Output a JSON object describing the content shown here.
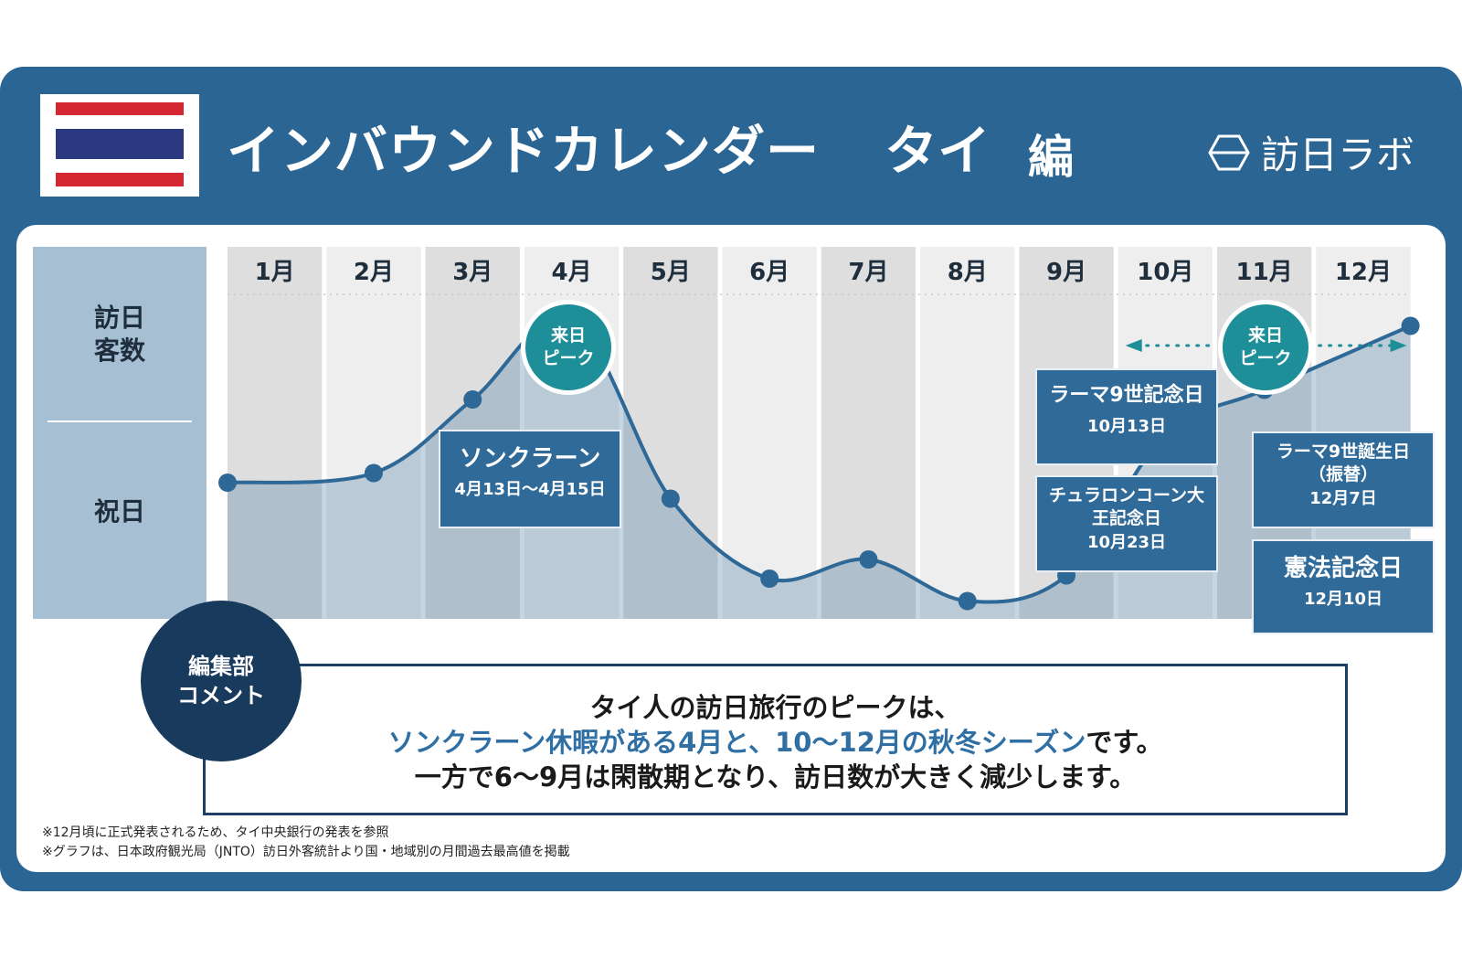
{
  "header": {
    "title": "インバウンドカレンダー",
    "country": "タイ",
    "suffix": "編",
    "brand": "訪日ラボ"
  },
  "side_labels": {
    "visitors": [
      "訪日",
      "客数"
    ],
    "holidays": "祝日"
  },
  "chart_data": {
    "type": "line",
    "categories": [
      "1月",
      "2月",
      "3月",
      "4月",
      "5月",
      "6月",
      "7月",
      "8月",
      "9月",
      "10月",
      "11月",
      "12月"
    ],
    "series": [
      {
        "values": [
          0.4,
          0.43,
          0.66,
          0.91,
          0.35,
          0.1,
          0.16,
          0.03,
          0.11,
          0.55,
          0.69,
          0.89
        ]
      }
    ],
    "ylim": [
      0,
      1
    ],
    "peaks": [
      {
        "month": "4月",
        "label": [
          "来日",
          "ピーク"
        ]
      },
      {
        "month": "11月",
        "label": [
          "来日",
          "ピーク"
        ]
      }
    ],
    "peak_span": [
      "10月",
      "12月"
    ],
    "holidays": [
      {
        "name": "ソンクラーン",
        "date": "4月13日〜4月15日"
      },
      {
        "name": "ラーマ9世記念日",
        "date": "10月13日"
      },
      {
        "name": "チュラロンコーン大王記念日",
        "date": "10月23日"
      },
      {
        "name": "ラーマ9世誕生日（振替）",
        "date": "12月7日"
      },
      {
        "name": "憲法記念日",
        "date": "12月10日"
      }
    ]
  },
  "comment": {
    "badge": [
      "編集部",
      "コメント"
    ],
    "line1": "タイ人の訪日旅行のピークは、",
    "line2_highlight": "ソンクラーン休暇がある4月と、10〜12月の秋冬シーズン",
    "line2_tail": "です。",
    "line3": "一方で6〜9月は閑散期となり、訪日数が大きく減少します。"
  },
  "notes": [
    "※12月頃に正式発表されるため、タイ中央銀行の発表を参照",
    "※グラフは、日本政府観光局（JNTO）訪日外客統計より国・地域別の月間過去最高値を掲載"
  ],
  "colors": {
    "frame": "#2a6594",
    "line": "#2d6896",
    "area": "#5a87ad",
    "peak": "#1e8f98",
    "holiday_box": "#2f6a98",
    "highlight": "#2f6fa4"
  }
}
